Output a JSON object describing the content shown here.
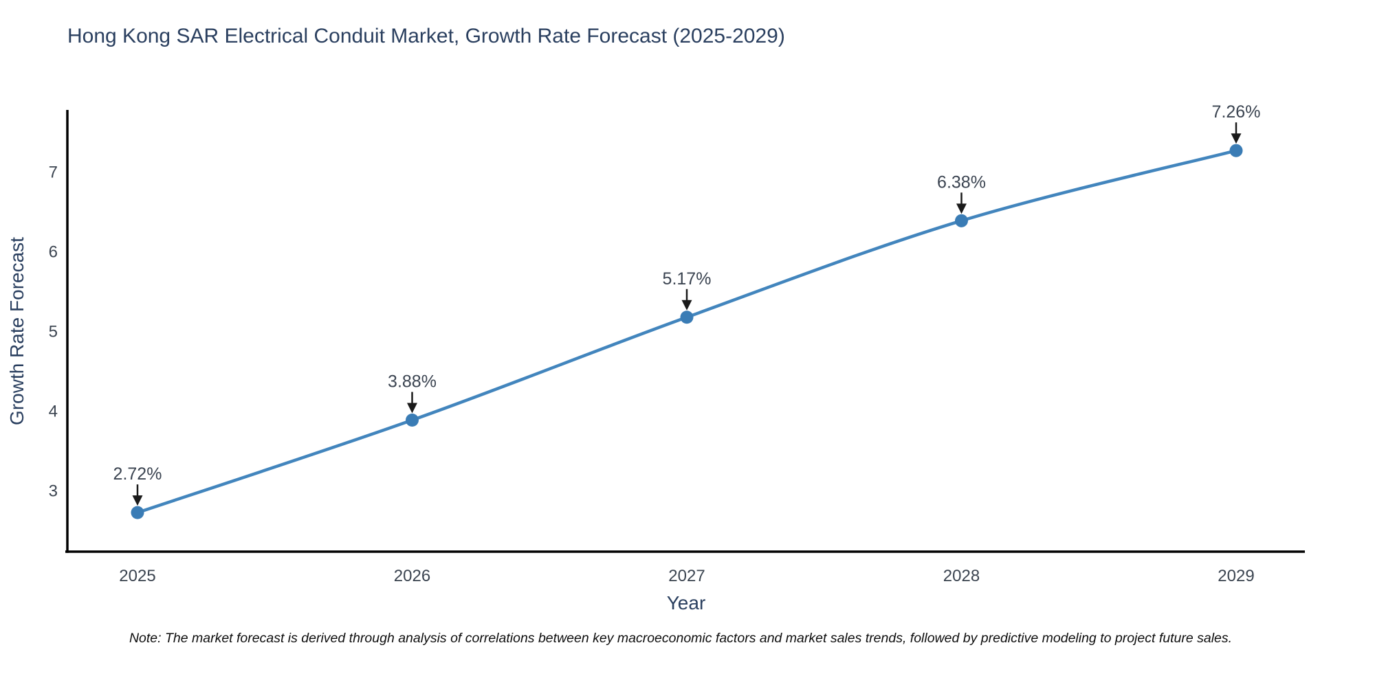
{
  "figure": {
    "note": "Note: The market forecast is derived through analysis of correlations between key macroeconomic factors and market sales trends, followed by predictive modeling to project future sales."
  },
  "chart_data": {
    "type": "line",
    "title": "Hong Kong SAR Electrical Conduit Market, Growth Rate Forecast (2025-2029)",
    "xlabel": "Year",
    "ylabel": "Growth Rate Forecast",
    "x": [
      2025,
      2026,
      2027,
      2028,
      2029
    ],
    "series": [
      {
        "name": "Growth Rate Forecast",
        "values": [
          2.72,
          3.88,
          5.17,
          6.38,
          7.26
        ]
      }
    ],
    "point_labels": [
      "2.72%",
      "3.88%",
      "5.17%",
      "6.38%",
      "7.26%"
    ],
    "yticks": [
      3,
      4,
      5,
      6,
      7
    ],
    "ylim": [
      2.23,
      7.77
    ],
    "grid": false,
    "legend": "none",
    "annotations": "black arrows pointing down to each data point with percent labels",
    "colors": {
      "line": "#4285bd",
      "marker": "#3a7cb5",
      "axis": "#000000",
      "title_text": "#2a3f5f",
      "tick_text": "#3b4450",
      "annotation_text": "#3a4350",
      "arrow": "#1a1a1a",
      "background": "#ffffff"
    }
  }
}
